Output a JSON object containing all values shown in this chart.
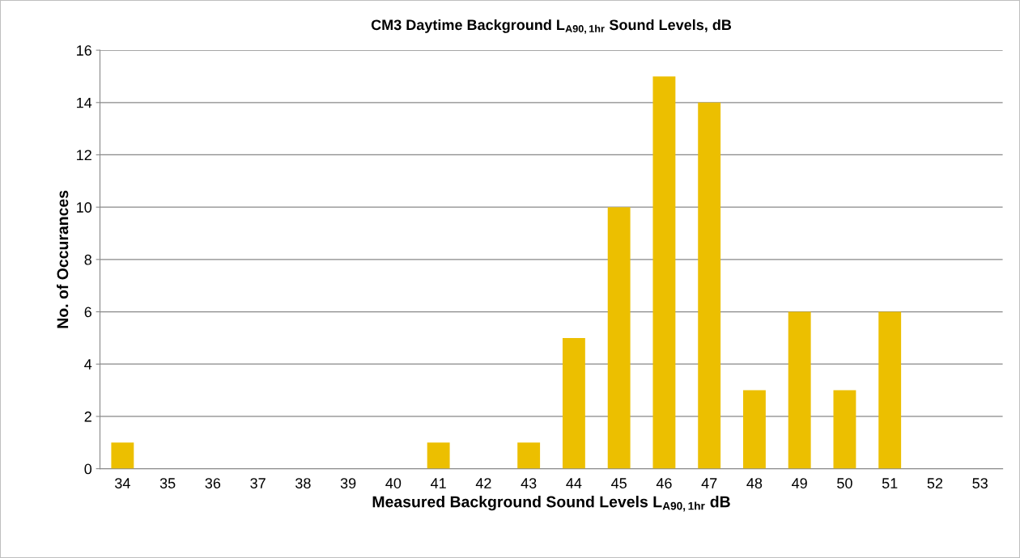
{
  "chart_data": {
    "type": "bar",
    "title": "CM3 Daytime Background L$_{A90,1hr}$ Sound Levels, dB",
    "xlabel": "Measured Background Sound Levels L$_{A90,1hr}$ dB",
    "ylabel": "No. of Occurances",
    "categories": [
      "34",
      "35",
      "36",
      "37",
      "38",
      "39",
      "40",
      "41",
      "42",
      "43",
      "44",
      "45",
      "46",
      "47",
      "48",
      "49",
      "50",
      "51",
      "52",
      "53"
    ],
    "values": [
      1,
      0,
      0,
      0,
      0,
      0,
      0,
      1,
      0,
      1,
      5,
      10,
      15,
      14,
      3,
      6,
      3,
      6,
      0,
      0
    ],
    "color": "#ecbf00",
    "ylim": [
      0,
      16
    ],
    "yticks": [
      0,
      2,
      4,
      6,
      8,
      10,
      12,
      14,
      16
    ],
    "grid": "y",
    "legend": false
  }
}
